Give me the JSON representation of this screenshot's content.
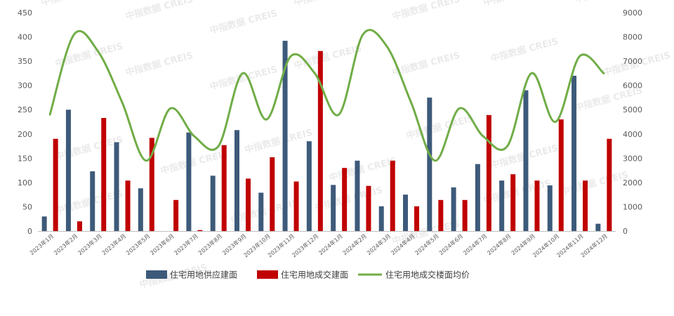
{
  "watermark_text": "中指数据 CREIS",
  "colors": {
    "supply": "#3d5a7a",
    "deal": "#c00000",
    "price": "#70ad47",
    "axis": "#bfbfbf",
    "tick": "#595959"
  },
  "chart_data": {
    "type": "bar",
    "categories": [
      "2023年1月",
      "2023年2月",
      "2023年3月",
      "2023年4月",
      "2023年5月",
      "2023年6月",
      "2023年7月",
      "2023年8月",
      "2023年9月",
      "2023年10月",
      "2023年11月",
      "2023年12月",
      "2024年1月",
      "2024年2月",
      "2024年3月",
      "2024年4月",
      "2024年5月",
      "2024年6月",
      "2024年7月",
      "2024年8月",
      "2024年9月",
      "2024年10月",
      "2024年11月",
      "2024年12月"
    ],
    "series": [
      {
        "name": "住宅用地供应建面",
        "type": "bar",
        "axis": "left",
        "values": [
          30,
          250,
          123,
          183,
          88,
          0,
          203,
          114,
          208,
          79,
          392,
          185,
          95,
          145,
          51,
          75,
          275,
          90,
          138,
          104,
          290,
          94,
          320,
          15
        ]
      },
      {
        "name": "住宅用地成交建面",
        "type": "bar",
        "axis": "left",
        "values": [
          190,
          20,
          233,
          104,
          192,
          64,
          2,
          177,
          108,
          152,
          102,
          371,
          130,
          93,
          145,
          51,
          64,
          64,
          239,
          117,
          104,
          230,
          104,
          190
        ]
      },
      {
        "name": "住宅用地成交楼面均价",
        "type": "line",
        "axis": "right",
        "values": [
          4800,
          8100,
          7400,
          5300,
          2900,
          5050,
          3900,
          3500,
          6500,
          4600,
          7200,
          6500,
          4800,
          8100,
          7600,
          5300,
          2900,
          5050,
          3900,
          3500,
          6500,
          4500,
          7200,
          6500
        ]
      }
    ],
    "y_left": {
      "min": 0,
      "max": 450,
      "ticks": [
        "0",
        "50",
        "100",
        "150",
        "200",
        "250",
        "300",
        "350",
        "400",
        "450"
      ]
    },
    "y_right": {
      "min": 0,
      "max": 9000,
      "ticks": [
        "0",
        "1000",
        "2000",
        "3000",
        "4000",
        "5000",
        "6000",
        "7000",
        "8000",
        "9000"
      ]
    },
    "legend_position": "bottom",
    "grid": false
  }
}
